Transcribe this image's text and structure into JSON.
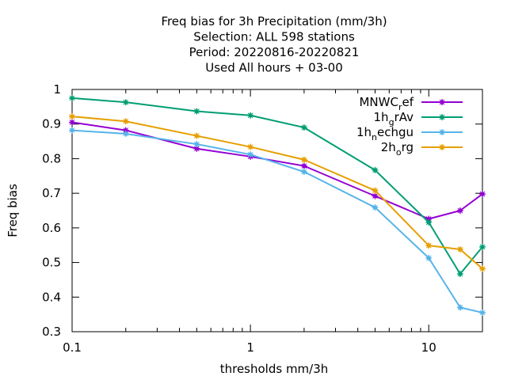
{
  "chart_data": {
    "type": "line",
    "title_lines": [
      "Freq bias  for 3h Precipitation (mm/3h)",
      "Selection: ALL    598 stations",
      "Period: 20220816-20220821",
      "Used  All hours  + 03-00"
    ],
    "xlabel": "thresholds mm/3h",
    "ylabel": "Freq bias",
    "x_scale": "log",
    "xlim": [
      0.1,
      20
    ],
    "ylim": [
      0.3,
      1.0
    ],
    "x_ticks": [
      {
        "value": 0.1,
        "label": "0.1"
      },
      {
        "value": 1,
        "label": "1"
      },
      {
        "value": 10,
        "label": "10"
      }
    ],
    "y_ticks": [
      {
        "value": 0.3,
        "label": "0.3"
      },
      {
        "value": 0.4,
        "label": "0.4"
      },
      {
        "value": 0.5,
        "label": "0.5"
      },
      {
        "value": 0.6,
        "label": "0.6"
      },
      {
        "value": 0.7,
        "label": "0.7"
      },
      {
        "value": 0.8,
        "label": "0.8"
      },
      {
        "value": 0.9,
        "label": "0.9"
      },
      {
        "value": 1.0,
        "label": "1"
      }
    ],
    "legend_position": "top-right",
    "grid": false,
    "x": [
      0.1,
      0.2,
      0.5,
      1,
      2,
      5,
      10,
      15,
      20
    ],
    "series": [
      {
        "name": "MNWC_ref",
        "label_main": "MNWC",
        "label_sub": "r",
        "label_rest": "ef",
        "color": "#9400d3",
        "marker": "plus-circle",
        "values": [
          0.905,
          0.882,
          0.829,
          0.806,
          0.779,
          0.692,
          0.626,
          0.65,
          0.698
        ]
      },
      {
        "name": "1h_grAv",
        "label_main": "1h",
        "label_sub": "g",
        "label_rest": "rAv",
        "color": "#009e73",
        "marker": "star",
        "values": [
          0.975,
          0.963,
          0.937,
          0.925,
          0.89,
          0.767,
          0.616,
          0.467,
          0.545
        ]
      },
      {
        "name": "1h_nechgu",
        "label_main": "1h",
        "label_sub": "n",
        "label_rest": "echgu",
        "color": "#56b4e9",
        "marker": "star",
        "values": [
          0.882,
          0.872,
          0.842,
          0.812,
          0.762,
          0.659,
          0.513,
          0.37,
          0.355
        ]
      },
      {
        "name": "2h_org",
        "label_main": "2h",
        "label_sub": "o",
        "label_rest": "rg",
        "color": "#e69f00",
        "marker": "star",
        "values": [
          0.922,
          0.908,
          0.866,
          0.834,
          0.797,
          0.708,
          0.549,
          0.538,
          0.482
        ]
      }
    ]
  }
}
